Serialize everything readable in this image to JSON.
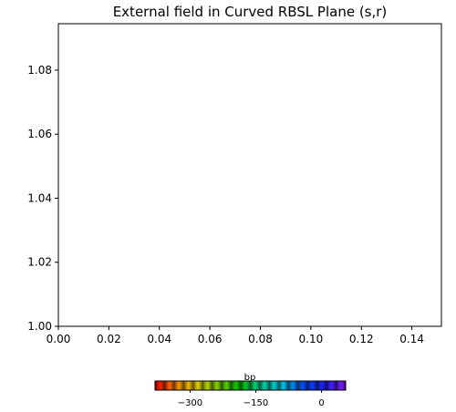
{
  "chart_data": {
    "type": "scatter",
    "title": "External field in Curved RBSL Plane (s,r)",
    "xlabel": "",
    "ylabel": "",
    "xlim": [
      0.0,
      0.1517
    ],
    "ylim": [
      1.0,
      1.0945
    ],
    "x_ticks": [
      0.0,
      0.02,
      0.04,
      0.06,
      0.08,
      0.1,
      0.12,
      0.14
    ],
    "x_tick_labels": [
      "0.00",
      "0.02",
      "0.04",
      "0.06",
      "0.08",
      "0.10",
      "0.12",
      "0.14"
    ],
    "y_ticks": [
      1.0,
      1.02,
      1.04,
      1.06,
      1.08
    ],
    "y_tick_labels": [
      "1.00",
      "1.02",
      "1.04",
      "1.06",
      "1.08"
    ],
    "grid": false,
    "series": [],
    "colorbar": {
      "label": "bp",
      "orientation": "horizontal",
      "range": [
        -380,
        55
      ],
      "ticks": [
        -300,
        -150,
        0
      ],
      "tick_labels": [
        "−300",
        "−150",
        "0"
      ],
      "colormap": [
        "#ff0000",
        "#ff8c00",
        "#e6d200",
        "#7fd600",
        "#00c800",
        "#00d7a0",
        "#00c8e6",
        "#0050ff",
        "#2020ff",
        "#8c1cff"
      ]
    }
  }
}
